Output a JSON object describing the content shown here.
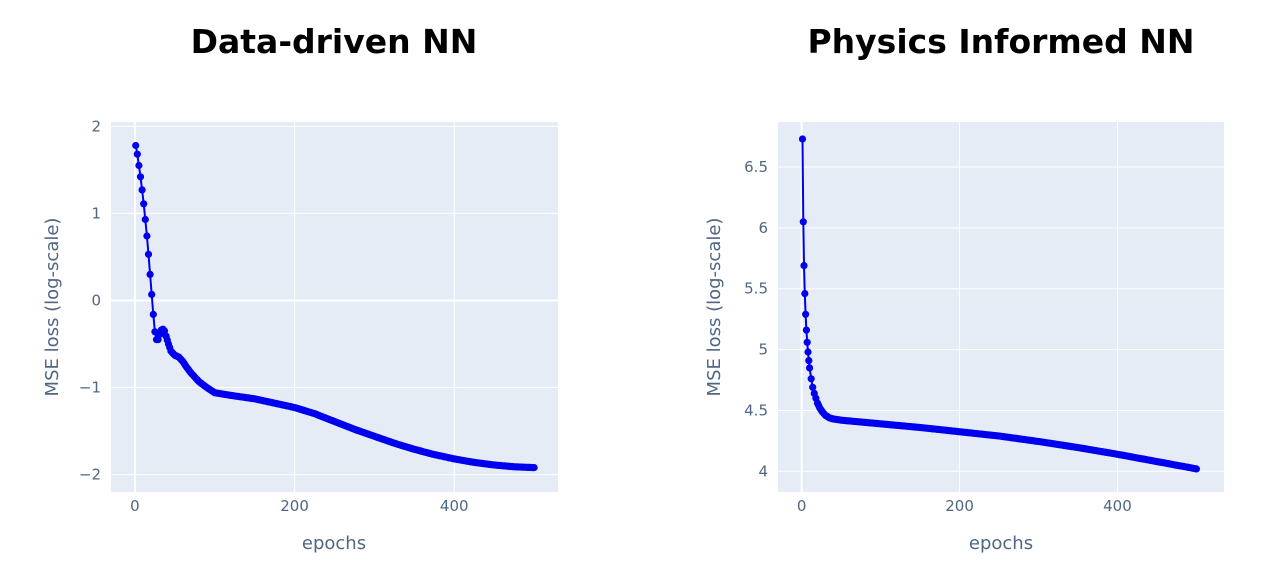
{
  "chart_data": [
    {
      "type": "line",
      "title": "Data-driven NN",
      "xlabel": "epochs",
      "ylabel": "MSE loss (log-scale)",
      "xlim": [
        -30,
        530
      ],
      "ylim": [
        -2.2,
        2.05
      ],
      "x_ticks": [
        0,
        200,
        400
      ],
      "x_tick_labels": [
        "0",
        "200",
        "400"
      ],
      "y_ticks": [
        -2,
        -1,
        0,
        1,
        2
      ],
      "y_tick_labels": [
        "−2",
        "−1",
        "0",
        "1",
        "2"
      ],
      "series": [
        {
          "mode": "lines+markers",
          "color": "#0000ee",
          "points": [
            [
              1,
              1.78
            ],
            [
              3,
              1.68
            ],
            [
              5,
              1.55
            ],
            [
              7,
              1.42
            ],
            [
              9,
              1.27
            ],
            [
              11,
              1.11
            ],
            [
              13,
              0.93
            ],
            [
              15,
              0.74
            ],
            [
              17,
              0.53
            ],
            [
              19,
              0.3
            ],
            [
              21,
              0.07
            ],
            [
              23,
              -0.16
            ],
            [
              25,
              -0.36
            ],
            [
              27,
              -0.45
            ],
            [
              29,
              -0.45
            ],
            [
              31,
              -0.39
            ],
            [
              33,
              -0.34
            ],
            [
              35,
              -0.33
            ],
            [
              37,
              -0.35
            ],
            [
              39,
              -0.41
            ],
            [
              42,
              -0.5
            ],
            [
              45,
              -0.58
            ],
            [
              50,
              -0.63
            ],
            [
              55,
              -0.65
            ],
            [
              60,
              -0.7
            ],
            [
              65,
              -0.77
            ],
            [
              70,
              -0.83
            ],
            [
              80,
              -0.93
            ],
            [
              90,
              -1.0
            ],
            [
              100,
              -1.06
            ],
            [
              120,
              -1.09
            ],
            [
              150,
              -1.13
            ],
            [
              175,
              -1.18
            ],
            [
              200,
              -1.23
            ],
            [
              225,
              -1.3
            ],
            [
              250,
              -1.39
            ],
            [
              275,
              -1.48
            ],
            [
              300,
              -1.56
            ],
            [
              325,
              -1.64
            ],
            [
              350,
              -1.71
            ],
            [
              375,
              -1.77
            ],
            [
              400,
              -1.82
            ],
            [
              425,
              -1.86
            ],
            [
              450,
              -1.89
            ],
            [
              475,
              -1.91
            ],
            [
              500,
              -1.92
            ]
          ]
        }
      ]
    },
    {
      "type": "line",
      "title": "Physics Informed NN",
      "xlabel": "epochs",
      "ylabel": "MSE loss (log-scale)",
      "xlim": [
        -30,
        535
      ],
      "ylim": [
        3.83,
        6.87
      ],
      "x_ticks": [
        0,
        200,
        400
      ],
      "x_tick_labels": [
        "0",
        "200",
        "400"
      ],
      "y_ticks": [
        4,
        4.5,
        5,
        5.5,
        6,
        6.5
      ],
      "y_tick_labels": [
        "4",
        "4.5",
        "5",
        "5.5",
        "6",
        "6.5"
      ],
      "series": [
        {
          "mode": "lines+markers",
          "color": "#0000ee",
          "points": [
            [
              1,
              6.73
            ],
            [
              2,
              6.05
            ],
            [
              3,
              5.69
            ],
            [
              4,
              5.46
            ],
            [
              5,
              5.29
            ],
            [
              6,
              5.16
            ],
            [
              7,
              5.06
            ],
            [
              8,
              4.98
            ],
            [
              9,
              4.91
            ],
            [
              10,
              4.85
            ],
            [
              12,
              4.76
            ],
            [
              14,
              4.69
            ],
            [
              16,
              4.64
            ],
            [
              18,
              4.6
            ],
            [
              20,
              4.56
            ],
            [
              23,
              4.52
            ],
            [
              26,
              4.49
            ],
            [
              30,
              4.46
            ],
            [
              35,
              4.44
            ],
            [
              40,
              4.43
            ],
            [
              50,
              4.42
            ],
            [
              75,
              4.405
            ],
            [
              100,
              4.39
            ],
            [
              150,
              4.36
            ],
            [
              200,
              4.325
            ],
            [
              250,
              4.29
            ],
            [
              300,
              4.245
            ],
            [
              350,
              4.195
            ],
            [
              400,
              4.14
            ],
            [
              450,
              4.08
            ],
            [
              500,
              4.02
            ]
          ]
        }
      ]
    }
  ]
}
